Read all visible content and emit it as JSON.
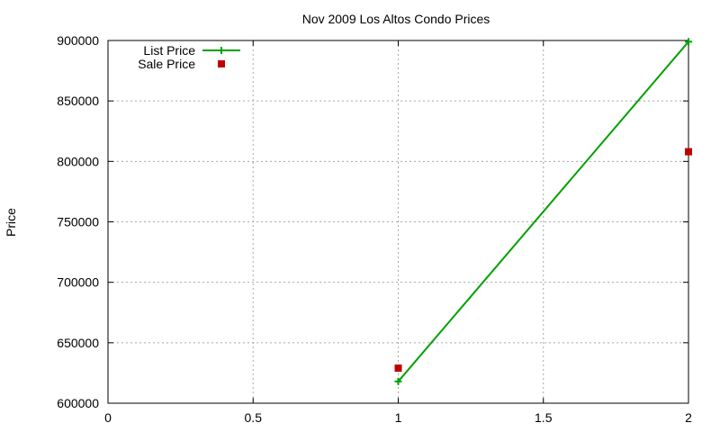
{
  "chart_data": {
    "type": "line",
    "title": "Nov 2009 Los Altos Condo Prices",
    "xlabel": "",
    "ylabel": "Price",
    "xlim": [
      0,
      2
    ],
    "ylim": [
      600000,
      900000
    ],
    "x_ticks": [
      0,
      0.5,
      1,
      1.5,
      2
    ],
    "x_tick_labels": [
      "0",
      "0.5",
      "1",
      "1.5",
      "2"
    ],
    "y_ticks": [
      600000,
      650000,
      700000,
      750000,
      800000,
      850000,
      900000
    ],
    "y_tick_labels": [
      "600000",
      "650000",
      "700000",
      "750000",
      "800000",
      "850000",
      "900000"
    ],
    "grid": true,
    "legend_position": "top-left",
    "series": [
      {
        "name": "List Price",
        "style": "line-with-plus-markers",
        "color": "#00a000",
        "x": [
          1,
          2
        ],
        "y": [
          618000,
          899000
        ]
      },
      {
        "name": "Sale Price",
        "style": "square-markers",
        "color": "#c00000",
        "x": [
          1,
          2
        ],
        "y": [
          629000,
          808000
        ]
      }
    ]
  }
}
